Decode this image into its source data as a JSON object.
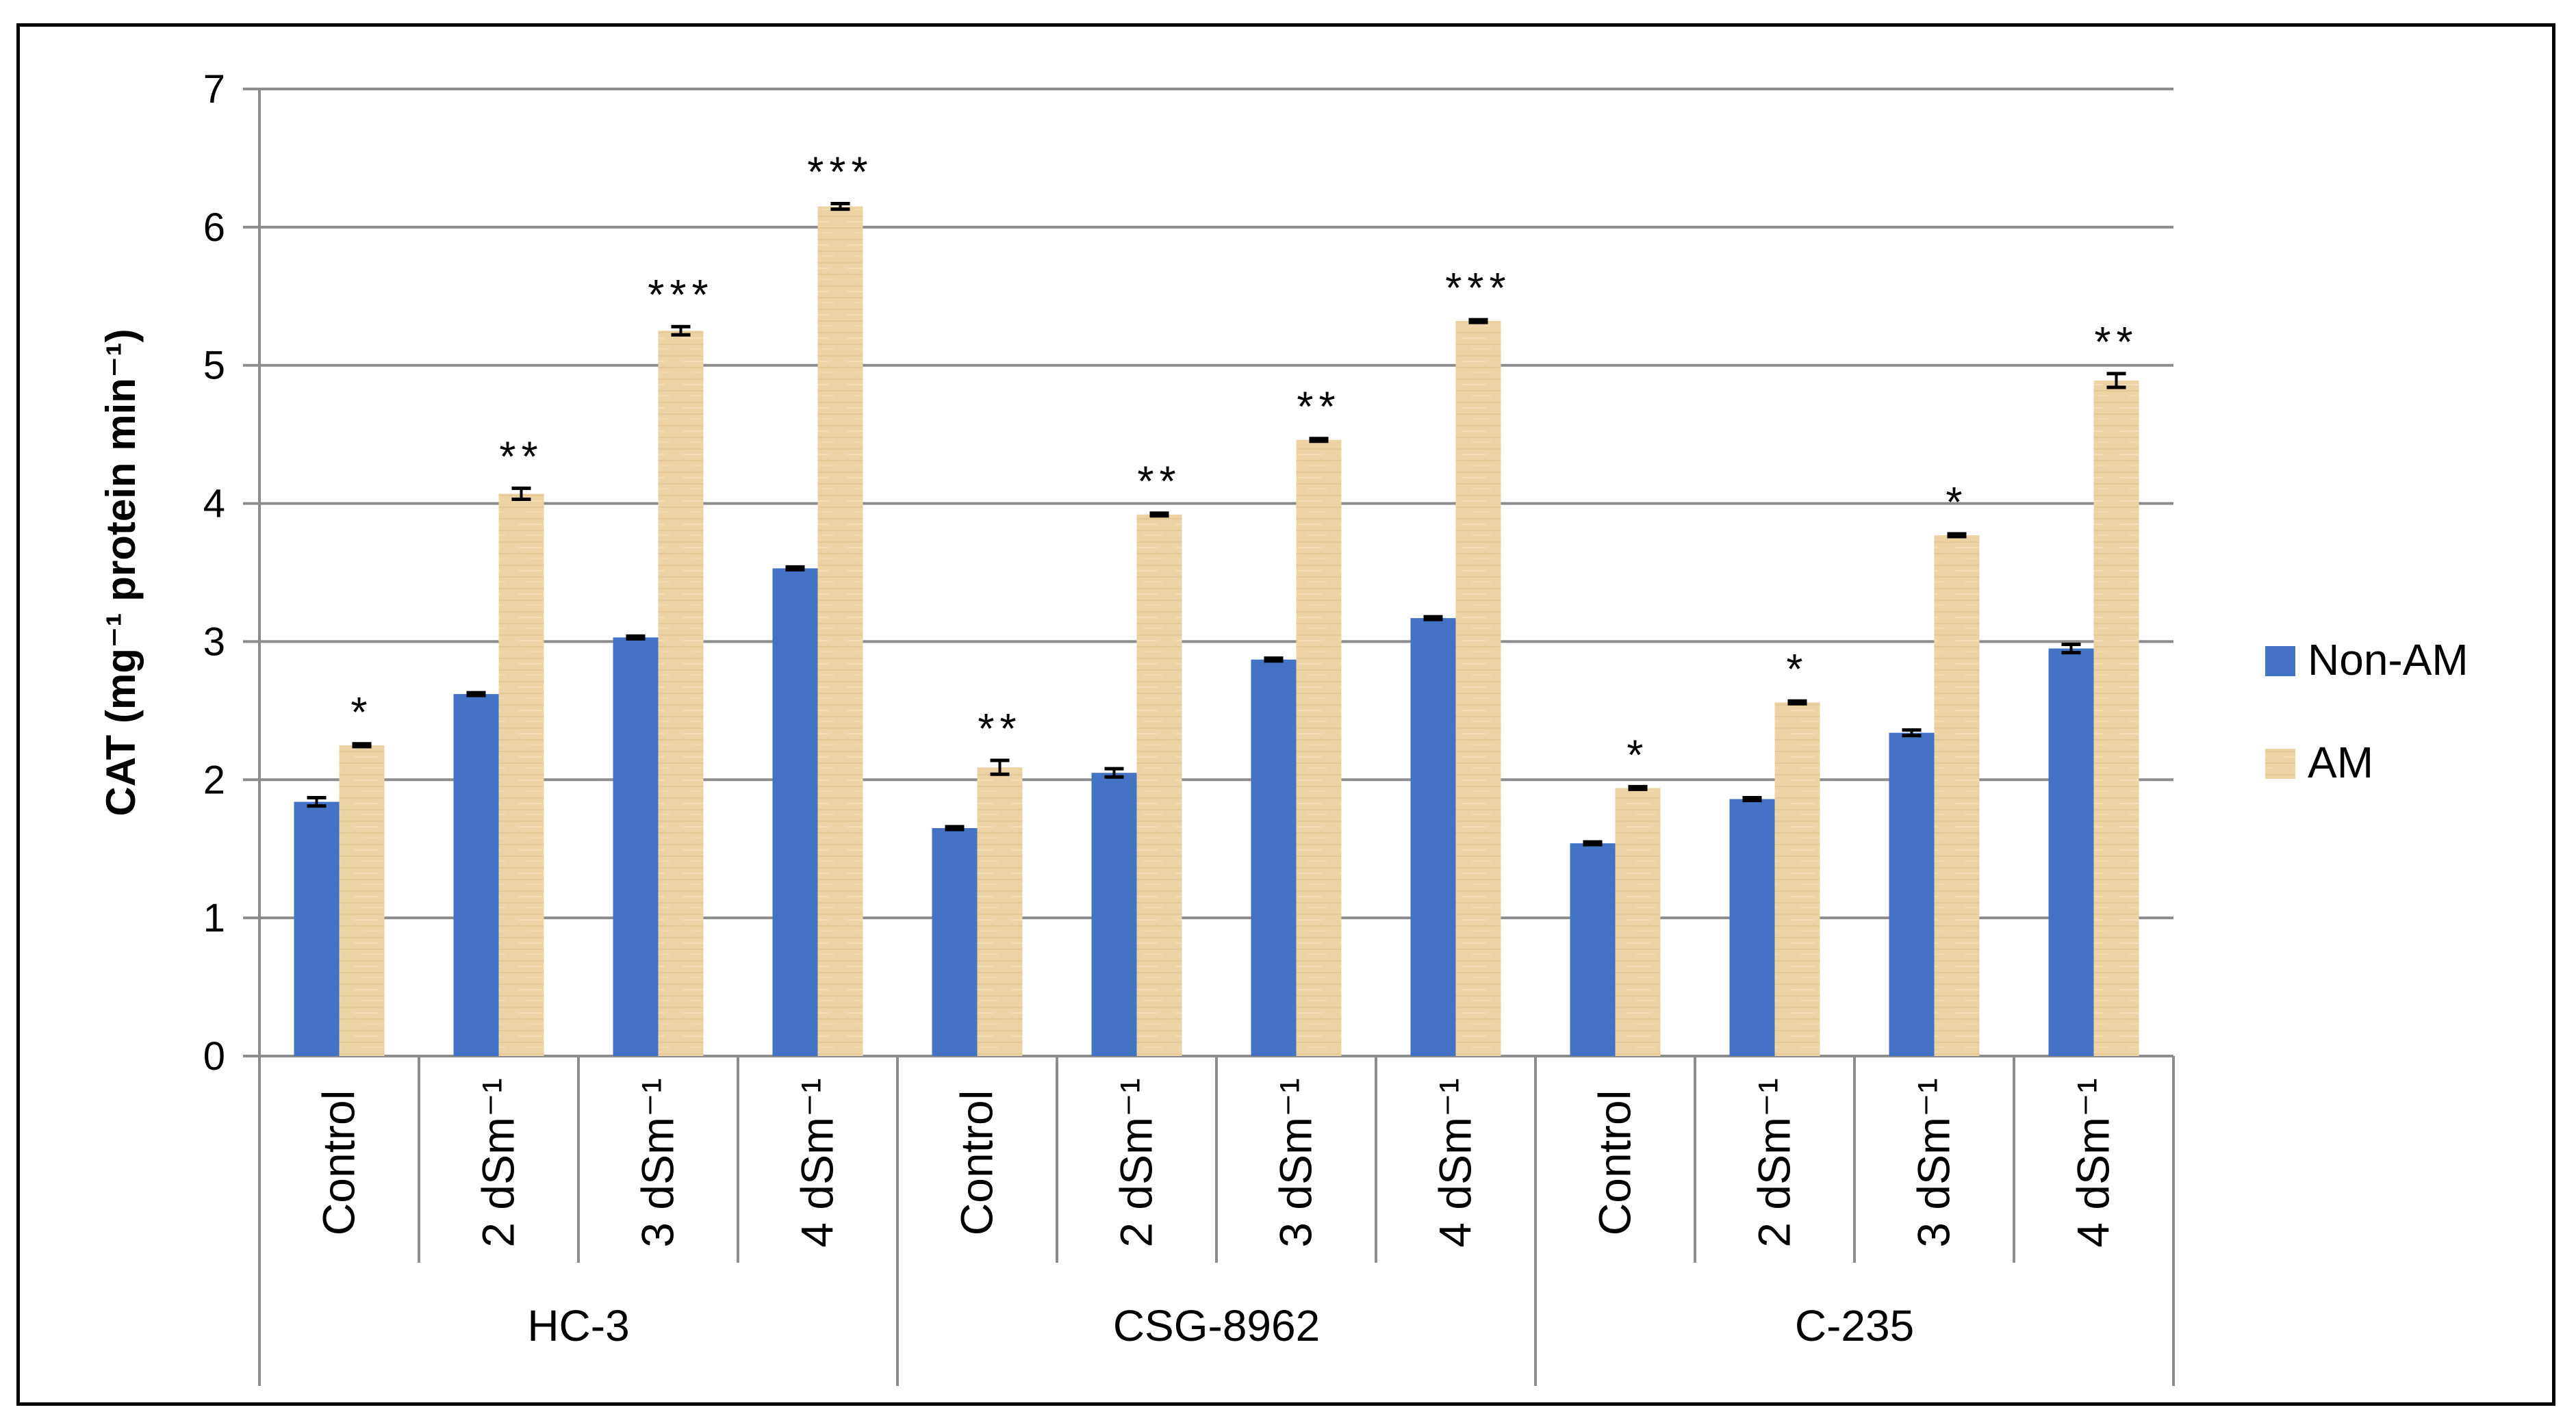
{
  "chart_data": {
    "type": "bar",
    "title": "",
    "ylabel": "CAT (mg⁻¹ protein min⁻¹)",
    "xlabel": "",
    "ylim": [
      0,
      7
    ],
    "yticks": [
      "0",
      "1",
      "2",
      "3",
      "4",
      "5",
      "6",
      "7"
    ],
    "grid": true,
    "legend_position": "right",
    "groups": [
      {
        "name": "HC-3",
        "categories": [
          "Control",
          "2 dSm⁻¹",
          "3 dSm⁻¹",
          "4 dSm⁻¹"
        ],
        "non_am": [
          1.84,
          2.62,
          3.03,
          3.53
        ],
        "non_am_err": [
          0.03,
          0.01,
          0.01,
          0.01
        ],
        "am": [
          2.25,
          4.07,
          5.25,
          6.15
        ],
        "am_err": [
          0.01,
          0.04,
          0.03,
          0.02
        ],
        "significance": [
          "*",
          "**",
          "***",
          "***"
        ]
      },
      {
        "name": "CSG-8962",
        "categories": [
          "Control",
          "2 dSm⁻¹",
          "3 dSm⁻¹",
          "4 dSm⁻¹"
        ],
        "non_am": [
          1.65,
          2.05,
          2.87,
          3.17
        ],
        "non_am_err": [
          0.01,
          0.03,
          0.01,
          0.01
        ],
        "am": [
          2.09,
          3.92,
          4.46,
          5.32
        ],
        "am_err": [
          0.05,
          0.01,
          0.01,
          0.01
        ],
        "significance": [
          "**",
          "**",
          "**",
          "***"
        ]
      },
      {
        "name": "C-235",
        "categories": [
          "Control",
          "2 dSm⁻¹",
          "3 dSm⁻¹",
          "4 dSm⁻¹"
        ],
        "non_am": [
          1.54,
          1.86,
          2.34,
          2.95
        ],
        "non_am_err": [
          0.01,
          0.01,
          0.02,
          0.03
        ],
        "am": [
          1.94,
          2.56,
          3.77,
          4.89
        ],
        "am_err": [
          0.01,
          0.01,
          0.01,
          0.05
        ],
        "significance": [
          "*",
          "*",
          "*",
          "**"
        ]
      }
    ],
    "series": [
      {
        "name": "Non-AM",
        "color": "#4472C4"
      },
      {
        "name": "AM",
        "color": "#E9CF9C"
      }
    ]
  }
}
